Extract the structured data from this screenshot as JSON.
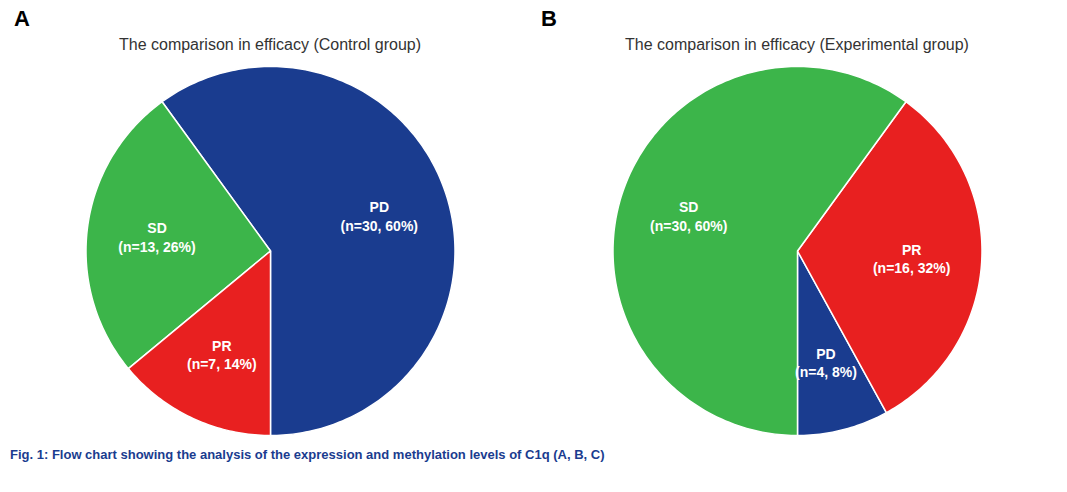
{
  "chart_data": [
    {
      "type": "pie",
      "title": "The comparison in efficacy (Control group)",
      "panel_label": "A",
      "categories": [
        "PD",
        "SD",
        "PR"
      ],
      "values": [
        60,
        26,
        14
      ],
      "value_labels": [
        "(n=30, 60%)",
        "(n=13, 26%)",
        "(n=7, 14%)"
      ],
      "colors": [
        "#1a3c8f",
        "#3cb54a",
        "#e82020"
      ],
      "label_color": "#ffffff",
      "data_labels": true
    },
    {
      "type": "pie",
      "title": "The comparison in efficacy (Experimental group)",
      "panel_label": "B",
      "categories": [
        "PD",
        "PR",
        "SD"
      ],
      "values": [
        8,
        32,
        60
      ],
      "value_labels": [
        "(n=4, 8%)",
        "(n=16, 32%)",
        "(n=30, 60%)"
      ],
      "colors": [
        "#1a3c8f",
        "#e82020",
        "#3cb54a"
      ],
      "label_color": "#ffffff",
      "data_labels": true
    }
  ],
  "caption": "Fig. 1: Flow chart showing the analysis of the expression and methylation levels of C1q (A, B, C)",
  "caption_color": "#1a3c8f"
}
